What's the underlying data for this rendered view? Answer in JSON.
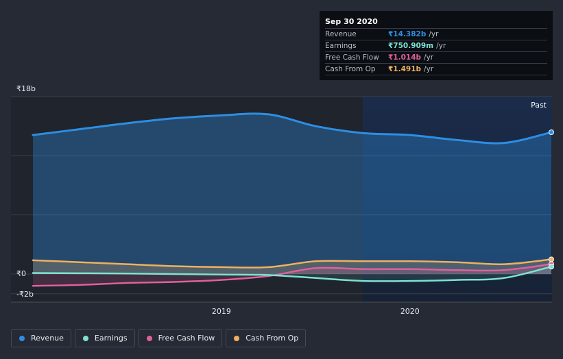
{
  "tooltip": {
    "date": "Sep 30 2020",
    "rows": [
      {
        "label": "Revenue",
        "value": "₹14.382b",
        "unit": "/yr",
        "color": "#2d8ee3"
      },
      {
        "label": "Earnings",
        "value": "₹750.909m",
        "unit": "/yr",
        "color": "#7ee2d2"
      },
      {
        "label": "Free Cash Flow",
        "value": "₹1.014b",
        "unit": "/yr",
        "color": "#e0609c"
      },
      {
        "label": "Cash From Op",
        "value": "₹1.491b",
        "unit": "/yr",
        "color": "#f0b060"
      }
    ]
  },
  "legend": [
    {
      "label": "Revenue",
      "color": "#2d8ee3"
    },
    {
      "label": "Earnings",
      "color": "#7ee2d2"
    },
    {
      "label": "Free Cash Flow",
      "color": "#e0609c"
    },
    {
      "label": "Cash From Op",
      "color": "#f0b060"
    }
  ],
  "chart_data": {
    "type": "area",
    "title": "",
    "xlabel": "",
    "ylabel": "",
    "ylim": [
      -2,
      18
    ],
    "xlim": [
      2018.0,
      2020.75
    ],
    "y_tick_labels": [
      {
        "value": 18,
        "label": "₹18b"
      },
      {
        "value": 0,
        "label": "₹0"
      },
      {
        "value": -2,
        "label": "-₹2b"
      }
    ],
    "x_tick_labels": [
      {
        "value": 2019.0,
        "label": "2019"
      },
      {
        "value": 2020.0,
        "label": "2020"
      }
    ],
    "past_label": "Past",
    "past_start": 2019.75,
    "grid": true,
    "series": [
      {
        "name": "Revenue",
        "color": "#2d8ee3",
        "x": [
          2018.0,
          2018.25,
          2018.5,
          2018.75,
          2019.0,
          2019.25,
          2019.5,
          2019.75,
          2020.0,
          2020.25,
          2020.5,
          2020.75
        ],
        "y": [
          14.1,
          14.7,
          15.3,
          15.8,
          16.1,
          16.2,
          15.0,
          14.3,
          14.1,
          13.6,
          13.3,
          14.382
        ]
      },
      {
        "name": "Earnings",
        "color": "#7ee2d2",
        "x": [
          2018.0,
          2018.25,
          2018.5,
          2018.75,
          2019.0,
          2019.25,
          2019.5,
          2019.75,
          2020.0,
          2020.25,
          2020.5,
          2020.75
        ],
        "y": [
          0.1,
          0.08,
          0.05,
          0.0,
          -0.05,
          -0.1,
          -0.4,
          -0.7,
          -0.7,
          -0.6,
          -0.4,
          0.751
        ]
      },
      {
        "name": "Free Cash Flow",
        "color": "#e0609c",
        "x": [
          2018.0,
          2018.25,
          2018.5,
          2018.75,
          2019.0,
          2019.25,
          2019.5,
          2019.75,
          2020.0,
          2020.25,
          2020.5,
          2020.75
        ],
        "y": [
          -1.2,
          -1.1,
          -0.9,
          -0.8,
          -0.6,
          -0.2,
          0.6,
          0.5,
          0.5,
          0.4,
          0.4,
          1.014
        ]
      },
      {
        "name": "Cash From Op",
        "color": "#f0b060",
        "x": [
          2018.0,
          2018.25,
          2018.5,
          2018.75,
          2019.0,
          2019.25,
          2019.5,
          2019.75,
          2020.0,
          2020.25,
          2020.5,
          2020.75
        ],
        "y": [
          1.4,
          1.2,
          1.0,
          0.8,
          0.7,
          0.7,
          1.3,
          1.3,
          1.3,
          1.2,
          1.0,
          1.491
        ]
      }
    ]
  }
}
